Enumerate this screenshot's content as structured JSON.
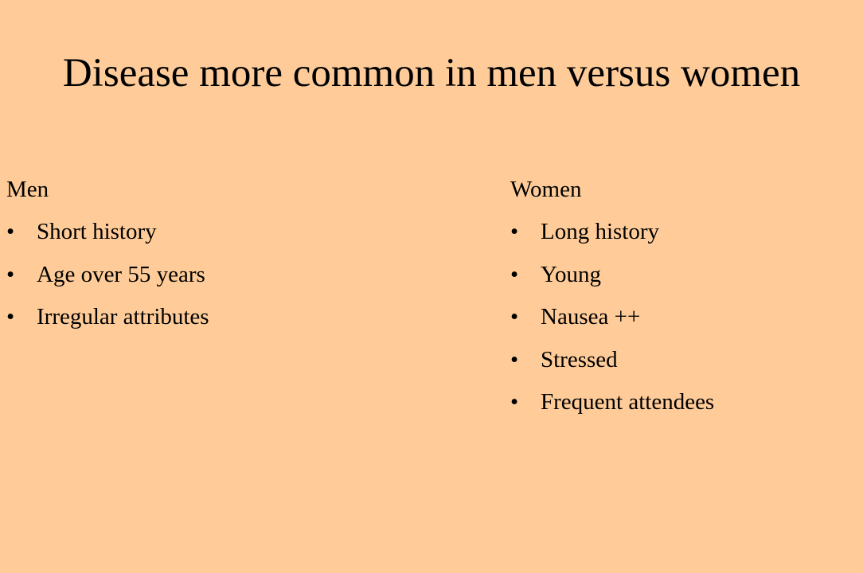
{
  "title": "Disease more common in men versus women",
  "columns": [
    {
      "heading": "Men",
      "items": [
        "Short history",
        "Age over 55 years",
        "Irregular attributes"
      ]
    },
    {
      "heading": "Women",
      "items": [
        "Long history",
        "Young",
        "Nausea ++",
        "Stressed",
        "Frequent attendees"
      ]
    }
  ]
}
